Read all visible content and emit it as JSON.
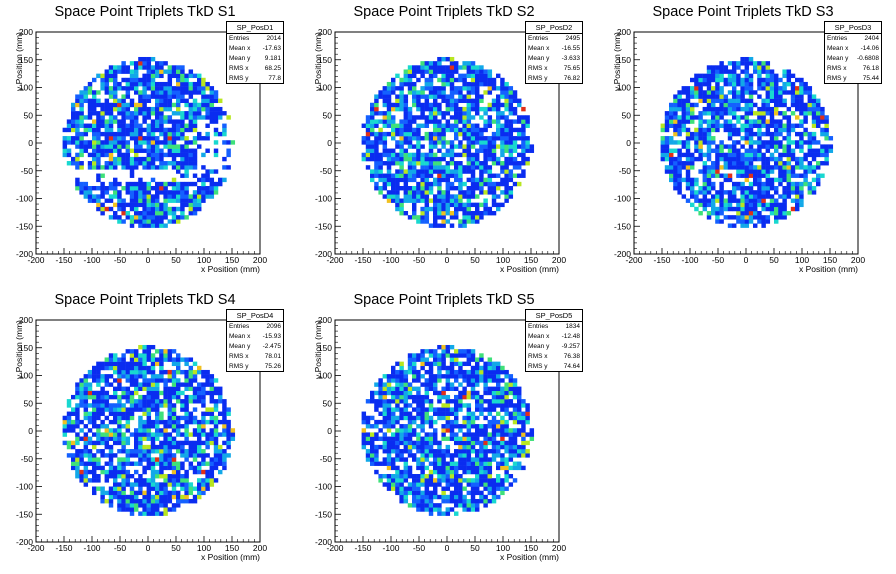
{
  "chart_data": [
    {
      "type": "heatmap",
      "title": "Space Point Triplets TkD S1",
      "xlabel": "x Position (mm)",
      "ylabel": "y Position (mm)",
      "xlim": [
        -200,
        200
      ],
      "ylim": [
        -200,
        200
      ],
      "xticks": [
        "-200",
        "-150",
        "-100",
        "-50",
        "0",
        "50",
        "100",
        "150",
        "200"
      ],
      "yticks": [
        "-200",
        "-150",
        "-100",
        "-50",
        "0",
        "50",
        "100",
        "150",
        "200"
      ],
      "stats": {
        "name": "SP_PosD1",
        "rows": [
          [
            "Entries",
            "2014"
          ],
          [
            "Mean x",
            "-17.63"
          ],
          [
            "Mean y",
            "9.181"
          ],
          [
            "RMS x",
            "68.25"
          ],
          [
            "RMS y",
            "77.8"
          ]
        ]
      }
    },
    {
      "type": "heatmap",
      "title": "Space Point Triplets TkD S2",
      "xlabel": "x Position (mm)",
      "ylabel": "y Position (mm)",
      "xlim": [
        -200,
        200
      ],
      "ylim": [
        -200,
        200
      ],
      "xticks": [
        "-200",
        "-150",
        "-100",
        "-50",
        "0",
        "50",
        "100",
        "150",
        "200"
      ],
      "yticks": [
        "-200",
        "-150",
        "-100",
        "-50",
        "0",
        "50",
        "100",
        "150",
        "200"
      ],
      "stats": {
        "name": "SP_PosD2",
        "rows": [
          [
            "Entries",
            "2495"
          ],
          [
            "Mean x",
            "-16.55"
          ],
          [
            "Mean y",
            "-3.633"
          ],
          [
            "RMS x",
            "75.65"
          ],
          [
            "RMS y",
            "76.82"
          ]
        ]
      }
    },
    {
      "type": "heatmap",
      "title": "Space Point Triplets TkD S3",
      "xlabel": "x Position (mm)",
      "ylabel": "y Position (mm)",
      "xlim": [
        -200,
        200
      ],
      "ylim": [
        -200,
        200
      ],
      "xticks": [
        "-200",
        "-150",
        "-100",
        "-50",
        "0",
        "50",
        "100",
        "150",
        "200"
      ],
      "yticks": [
        "-200",
        "-150",
        "-100",
        "-50",
        "0",
        "50",
        "100",
        "150",
        "200"
      ],
      "stats": {
        "name": "SP_PosD3",
        "rows": [
          [
            "Entries",
            "2404"
          ],
          [
            "Mean x",
            "-14.06"
          ],
          [
            "Mean y",
            "-0.6808"
          ],
          [
            "RMS x",
            "76.18"
          ],
          [
            "RMS y",
            "75.44"
          ]
        ]
      }
    },
    {
      "type": "heatmap",
      "title": "Space Point Triplets TkD S4",
      "xlabel": "x Position (mm)",
      "ylabel": "y Position (mm)",
      "xlim": [
        -200,
        200
      ],
      "ylim": [
        -200,
        200
      ],
      "xticks": [
        "-200",
        "-150",
        "-100",
        "-50",
        "0",
        "50",
        "100",
        "150",
        "200"
      ],
      "yticks": [
        "-200",
        "-150",
        "-100",
        "-50",
        "0",
        "50",
        "100",
        "150",
        "200"
      ],
      "stats": {
        "name": "SP_PosD4",
        "rows": [
          [
            "Entries",
            "2096"
          ],
          [
            "Mean x",
            "-15.93"
          ],
          [
            "Mean y",
            "-2.475"
          ],
          [
            "RMS x",
            "78.01"
          ],
          [
            "RMS y",
            "75.26"
          ]
        ]
      }
    },
    {
      "type": "heatmap",
      "title": "Space Point Triplets TkD S5",
      "xlabel": "x Position (mm)",
      "ylabel": "y Position (mm)",
      "xlim": [
        -200,
        200
      ],
      "ylim": [
        -200,
        200
      ],
      "xticks": [
        "-200",
        "-150",
        "-100",
        "-50",
        "0",
        "50",
        "100",
        "150",
        "200"
      ],
      "yticks": [
        "-200",
        "-150",
        "-100",
        "-50",
        "0",
        "50",
        "100",
        "150",
        "200"
      ],
      "stats": {
        "name": "SP_PosD5",
        "rows": [
          [
            "Entries",
            "1834"
          ],
          [
            "Mean x",
            "-12.48"
          ],
          [
            "Mean y",
            "-9.257"
          ],
          [
            "RMS x",
            "76.38"
          ],
          [
            "RMS y",
            "74.64"
          ]
        ]
      }
    }
  ],
  "colors": {
    "palette": [
      "#0a2cf0",
      "#1460ff",
      "#12a8e8",
      "#18d8d0",
      "#3ee07a",
      "#b8e620",
      "#f0c020",
      "#e03018"
    ],
    "frame": "#000000",
    "background": "#ffffff"
  }
}
